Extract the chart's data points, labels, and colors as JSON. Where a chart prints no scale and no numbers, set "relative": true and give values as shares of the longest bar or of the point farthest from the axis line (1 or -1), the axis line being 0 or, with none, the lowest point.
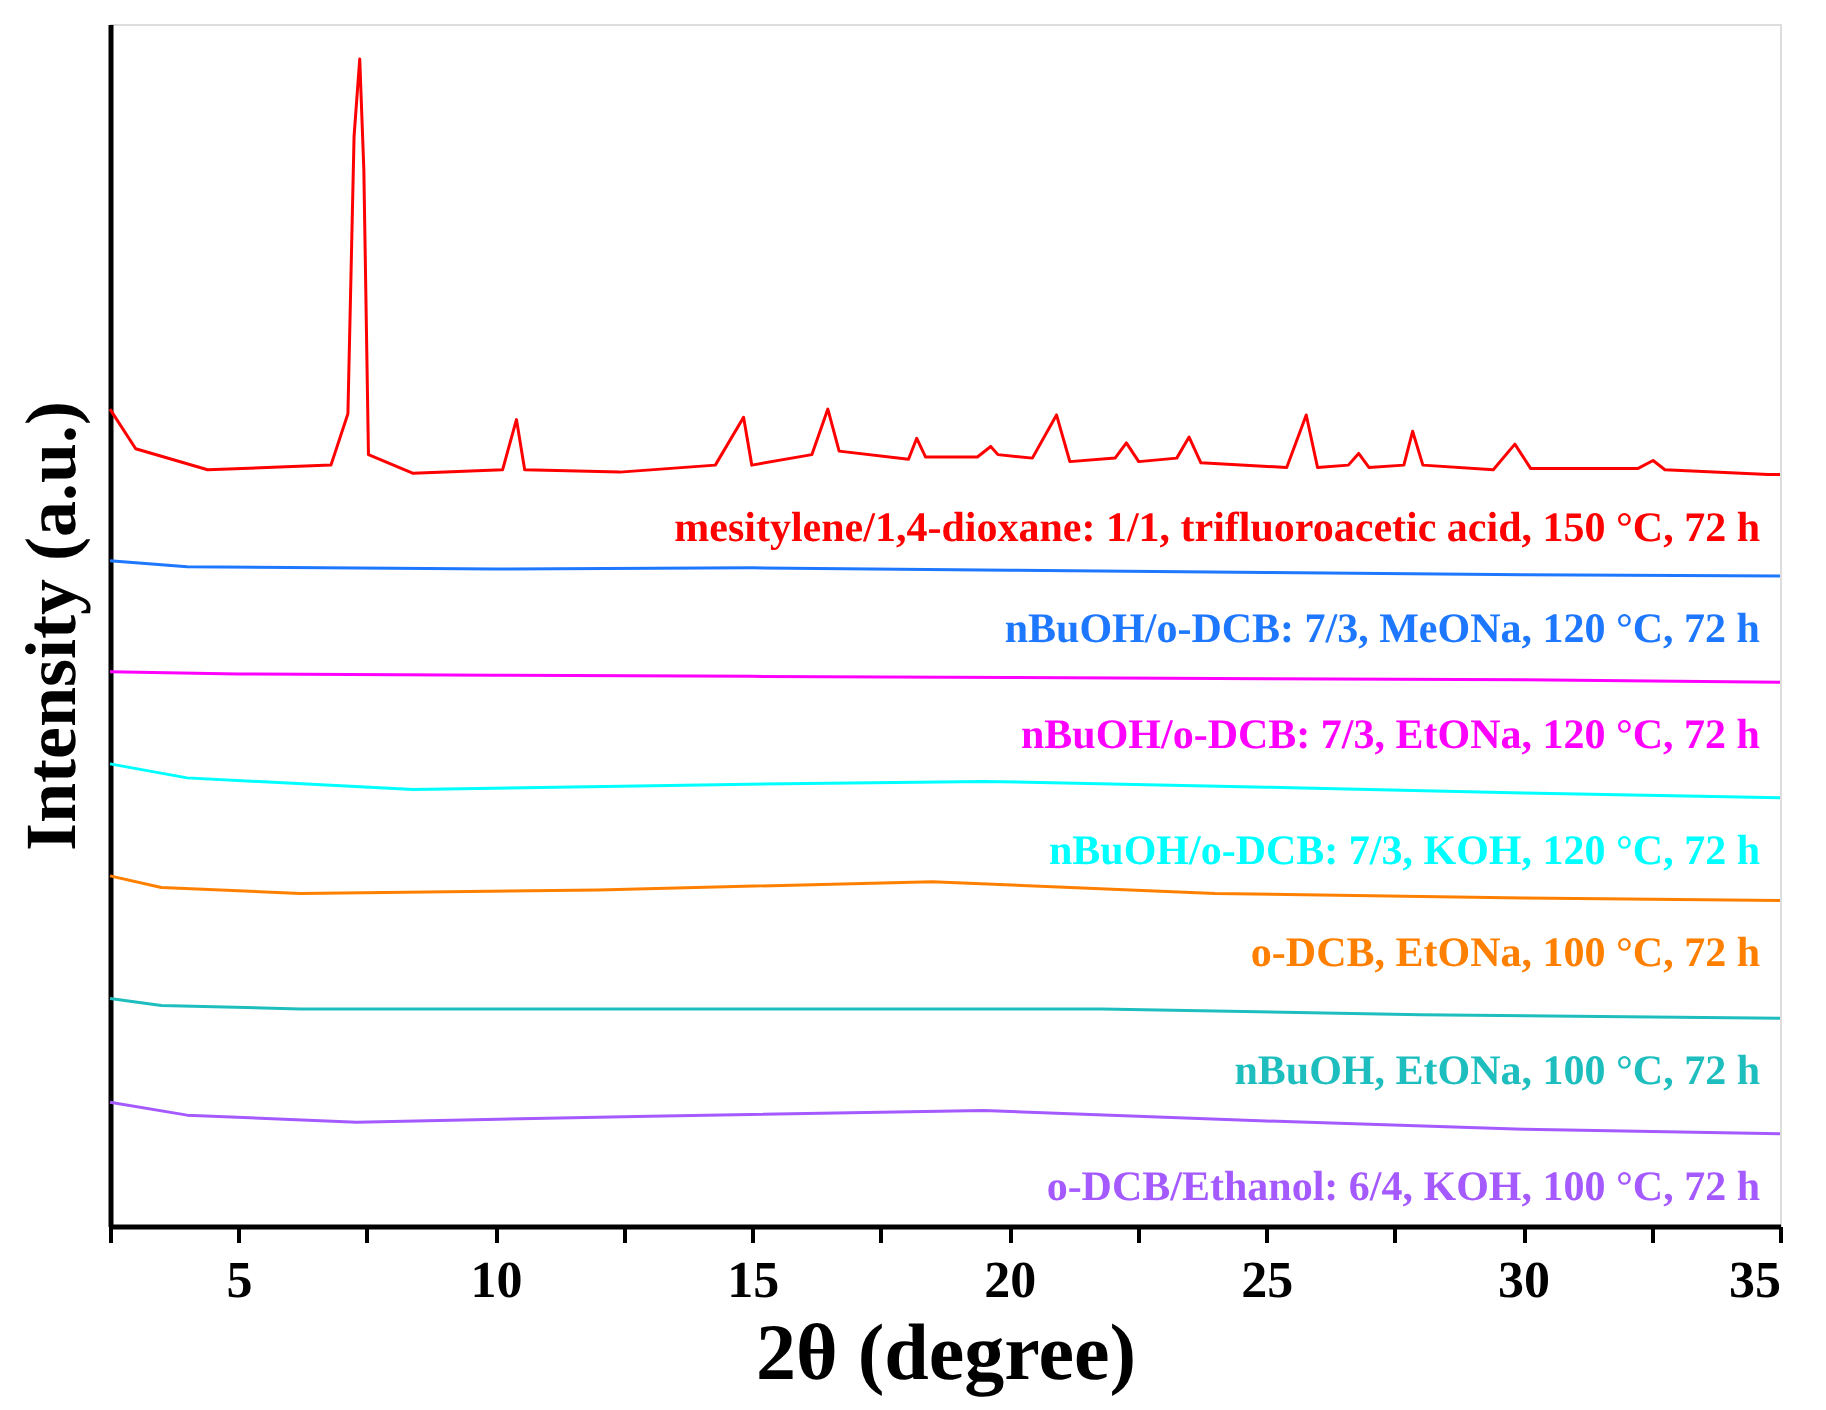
{
  "chart_data": {
    "type": "line",
    "relative": true,
    "xlabel": "2θ (degree)",
    "ylabel": "Intensity (a.u.)",
    "xlim": [
      2.5,
      35
    ],
    "xticks": [
      {
        "value": 2.5,
        "label": null
      },
      5,
      {
        "value": 7.5,
        "label": null
      },
      10,
      {
        "value": 12.5,
        "label": null
      },
      15,
      {
        "value": 17.5,
        "label": null
      },
      20,
      {
        "value": 22.5,
        "label": null
      },
      25,
      {
        "value": 27.5,
        "label": null
      },
      30,
      {
        "value": 32.5,
        "label": null
      },
      35
    ],
    "grid": false,
    "legend": false,
    "marker": "none",
    "line_style": "solid",
    "series": [
      {
        "name": "mesitylene/1,4-dioxane: 1/1,  trifluoroacetic acid, 150 °C, 72 h",
        "color": "#ff0000",
        "x": [
          2.5,
          3.0,
          4.4,
          6.8,
          7.13,
          7.25,
          7.36,
          7.44,
          7.53,
          8.4,
          10.14,
          10.41,
          10.57,
          12.42,
          14.28,
          14.83,
          14.99,
          16.16,
          16.47,
          16.69,
          18.04,
          18.2,
          18.37,
          19.38,
          19.64,
          19.78,
          20.45,
          20.92,
          21.18,
          22.06,
          22.28,
          22.52,
          23.26,
          23.5,
          23.73,
          25.4,
          25.78,
          26.0,
          26.6,
          26.8,
          27.0,
          27.68,
          27.85,
          28.05,
          29.42,
          29.84,
          30.15,
          32.23,
          32.53,
          32.76,
          34.77,
          35.0
        ],
        "values": [
          0.7,
          0.666,
          0.648,
          0.652,
          0.696,
          0.934,
          1.0,
          0.905,
          0.661,
          0.645,
          0.648,
          0.691,
          0.648,
          0.646,
          0.652,
          0.693,
          0.652,
          0.661,
          0.7,
          0.664,
          0.657,
          0.675,
          0.659,
          0.659,
          0.668,
          0.661,
          0.658,
          0.695,
          0.655,
          0.658,
          0.671,
          0.655,
          0.658,
          0.676,
          0.654,
          0.65,
          0.695,
          0.65,
          0.652,
          0.662,
          0.65,
          0.652,
          0.681,
          0.652,
          0.648,
          0.67,
          0.649,
          0.649,
          0.656,
          0.648,
          0.644,
          0.644
        ]
      },
      {
        "name": "nBuOH/o-DCB: 7/3, MeONa, 120 °C, 72 h",
        "color": "#1e78ff",
        "x": [
          2.5,
          4.0,
          10.0,
          15.0,
          20.0,
          25.0,
          30.0,
          35.0
        ],
        "values": [
          0.57,
          0.565,
          0.563,
          0.564,
          0.562,
          0.56,
          0.558,
          0.557
        ]
      },
      {
        "name": "nBuOH/o-DCB: 7/3, EtONa, 120 °C, 72 h",
        "color": "#ff00ff",
        "x": [
          2.5,
          5.0,
          10.0,
          15.0,
          20.0,
          25.0,
          30.0,
          35.0
        ],
        "values": [
          0.475,
          0.473,
          0.472,
          0.471,
          0.47,
          0.469,
          0.468,
          0.466
        ]
      },
      {
        "name": "nBuOH/o-DCB: 7/3, KOH, 120 °C, 72 h",
        "color": "#00ffff",
        "x": [
          2.5,
          4.0,
          8.4,
          14.0,
          19.5,
          25.0,
          30.0,
          35.0
        ],
        "values": [
          0.396,
          0.384,
          0.374,
          0.378,
          0.381,
          0.376,
          0.371,
          0.367
        ]
      },
      {
        "name": "o-DCB, EtONa, 100 °C, 72 h",
        "color": "#ff8000",
        "x": [
          2.5,
          3.5,
          6.2,
          12.0,
          18.5,
          24.0,
          30.0,
          35.0
        ],
        "values": [
          0.3,
          0.29,
          0.285,
          0.288,
          0.295,
          0.285,
          0.281,
          0.279
        ]
      },
      {
        "name": "nBuOH,  EtONa, 100 °C, 72 h",
        "color": "#1ebebe",
        "x": [
          2.5,
          3.5,
          6.2,
          14.0,
          21.8,
          28.0,
          35.0
        ],
        "values": [
          0.195,
          0.189,
          0.186,
          0.186,
          0.186,
          0.181,
          0.178
        ]
      },
      {
        "name": "o-DCB/Ethanol: 6/4,  KOH, 100 °C, 72 h",
        "color": "#a55aff",
        "x": [
          2.5,
          4.0,
          7.3,
          13.0,
          19.5,
          25.0,
          30.0,
          35.0
        ],
        "values": [
          0.106,
          0.095,
          0.089,
          0.094,
          0.099,
          0.09,
          0.083,
          0.079
        ]
      }
    ]
  }
}
